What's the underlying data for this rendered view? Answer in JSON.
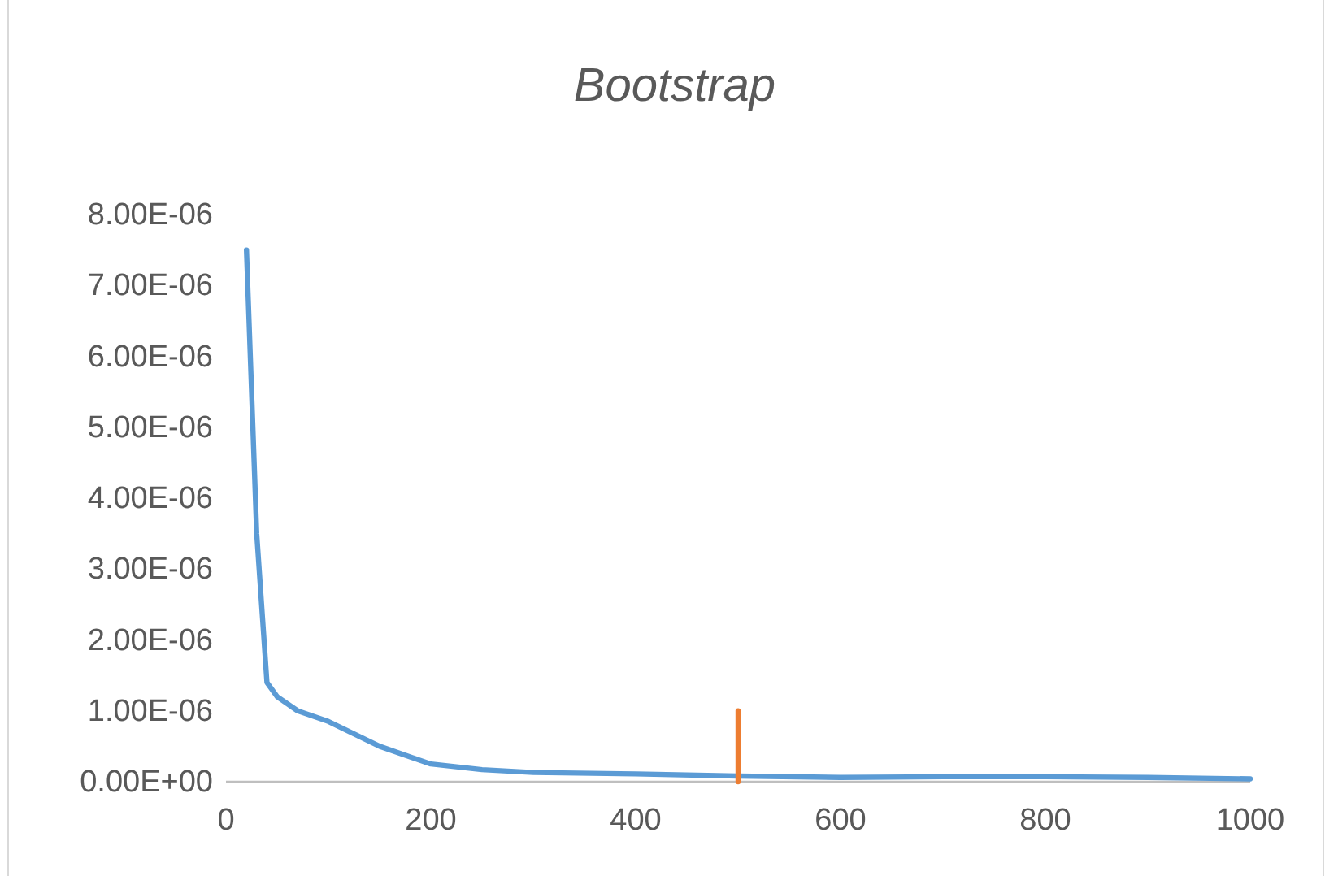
{
  "chart_data": {
    "type": "line",
    "title": "Bootstrap",
    "xlim": [
      0,
      1000
    ],
    "xticks": [
      0,
      200,
      400,
      600,
      800,
      1000
    ],
    "ylim": [
      0,
      8e-06
    ],
    "yticks": [
      {
        "value": 0,
        "label": "0.00E+00"
      },
      {
        "value": 1e-06,
        "label": "1.00E-06"
      },
      {
        "value": 2e-06,
        "label": "2.00E-06"
      },
      {
        "value": 3e-06,
        "label": "3.00E-06"
      },
      {
        "value": 4e-06,
        "label": "4.00E-06"
      },
      {
        "value": 5e-06,
        "label": "5.00E-06"
      },
      {
        "value": 6e-06,
        "label": "6.00E-06"
      },
      {
        "value": 7e-06,
        "label": "7.00E-06"
      },
      {
        "value": 8e-06,
        "label": "8.00E-06"
      }
    ],
    "grid": false,
    "series": [
      {
        "color": "#5b9bd5",
        "x": [
          20,
          30,
          40,
          50,
          70,
          100,
          150,
          200,
          250,
          300,
          400,
          500,
          600,
          700,
          800,
          900,
          1000
        ],
        "values": [
          7.5e-06,
          3.5e-06,
          1.4e-06,
          1.2e-06,
          1e-06,
          8.5e-07,
          5e-07,
          2.5e-07,
          1.7e-07,
          1.3e-07,
          1.1e-07,
          8e-08,
          6e-08,
          7e-08,
          7e-08,
          6e-08,
          4e-08
        ]
      },
      {
        "color": "#ed7d31",
        "x": [
          500,
          500
        ],
        "values": [
          0,
          1e-06
        ]
      }
    ]
  }
}
